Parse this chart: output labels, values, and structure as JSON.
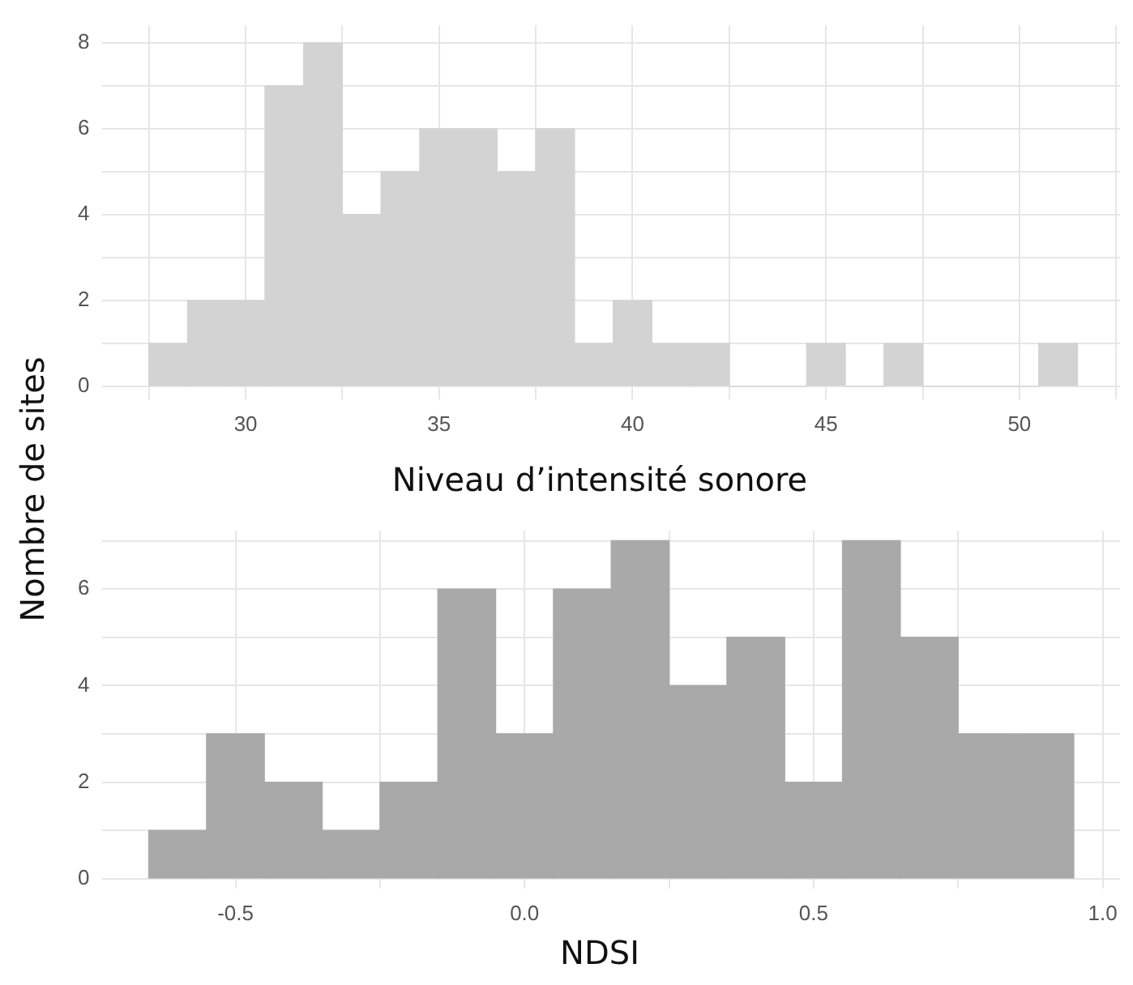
{
  "chart_data": [
    {
      "type": "histogram",
      "xlabel": "Niveau d’intensité sonore",
      "ylabel": "Nombre de sites",
      "color": "#d3d3d3",
      "bins": [
        27.5,
        28.5,
        29.5,
        30.5,
        31.5,
        32.5,
        33.5,
        34.5,
        35.5,
        36.5,
        37.5,
        38.5,
        39.5,
        40.5,
        41.5,
        42.5,
        43.5,
        44.5,
        45.5,
        46.5,
        47.5,
        48.5,
        49.5,
        50.5,
        51.5
      ],
      "values": [
        1,
        2,
        2,
        7,
        8,
        4,
        5,
        6,
        6,
        5,
        6,
        1,
        2,
        1,
        1,
        0,
        0,
        1,
        0,
        1,
        0,
        0,
        0,
        1
      ],
      "xlim": [
        26.3,
        52.6
      ],
      "xticks": [
        {
          "value": 27.5,
          "label": null
        },
        30,
        {
          "value": 32.5,
          "label": null
        },
        35,
        {
          "value": 37.5,
          "label": null
        },
        40,
        {
          "value": 42.5,
          "label": null
        },
        45,
        {
          "value": 47.5,
          "label": null
        },
        50,
        {
          "value": 52.5,
          "label": null
        }
      ],
      "ylim": [
        -0.3,
        8.4
      ],
      "yticks": [
        0,
        {
          "value": 1,
          "label": null
        },
        2,
        {
          "value": 3,
          "label": null
        },
        4,
        {
          "value": 5,
          "label": null
        },
        6,
        {
          "value": 7,
          "label": null
        },
        8
      ],
      "grid": true
    },
    {
      "type": "histogram",
      "xlabel": "NDSI",
      "color": "#a9a9a9",
      "bins": [
        -0.65,
        -0.55,
        -0.45,
        -0.35,
        -0.25,
        -0.15,
        -0.05,
        0.05,
        0.15,
        0.25,
        0.35,
        0.45,
        0.55,
        0.65,
        0.75,
        0.85,
        0.95
      ],
      "values": [
        1,
        3,
        2,
        1,
        2,
        6,
        3,
        6,
        7,
        4,
        5,
        2,
        7,
        5,
        3,
        3
      ],
      "xlim": [
        -0.73,
        1.03
      ],
      "xticks": [
        -0.5,
        {
          "value": -0.25,
          "label": null
        },
        {
          "value": 0,
          "label": "0.0"
        },
        {
          "value": 0.25,
          "label": null
        },
        0.5,
        {
          "value": 0.75,
          "label": null
        },
        {
          "value": 1,
          "label": "1.0"
        }
      ],
      "ylim": [
        -0.2,
        7.2
      ],
      "yticks": [
        0,
        {
          "value": 1,
          "label": null
        },
        2,
        {
          "value": 3,
          "label": null
        },
        4,
        {
          "value": 5,
          "label": null
        },
        6,
        {
          "value": 7,
          "label": null
        }
      ],
      "grid": true
    }
  ]
}
